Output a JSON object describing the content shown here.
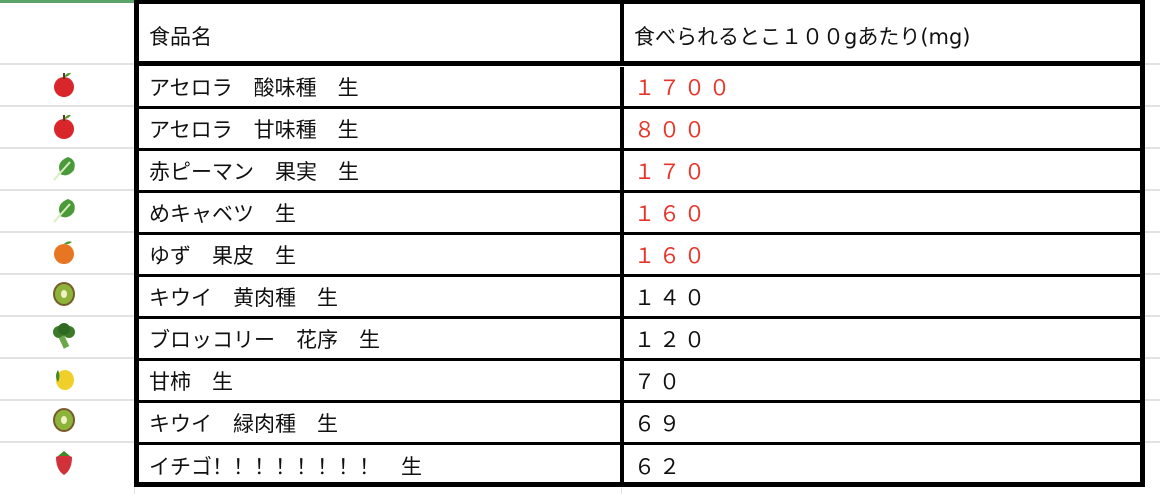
{
  "header": {
    "name": "食品名",
    "value": "食べられるとこ１００gあたり(mg)"
  },
  "colors": {
    "highlight": "#e8352a",
    "normal": "#111111",
    "selection": "#5aa469"
  },
  "rows": [
    {
      "icon": "red-apple-icon",
      "name": "アセロラ　酸味種　生",
      "value": "１７００",
      "highlight": true
    },
    {
      "icon": "red-apple-icon",
      "name": "アセロラ　甘味種　生",
      "value": "８００",
      "highlight": true
    },
    {
      "icon": "leafy-green-icon",
      "name": "赤ピーマン　果実　生",
      "value": "１７０",
      "highlight": true
    },
    {
      "icon": "leafy-green-icon",
      "name": "めキャベツ　生",
      "value": "１６０",
      "highlight": true
    },
    {
      "icon": "tangerine-icon",
      "name": "ゆず　果皮　生",
      "value": "１６０",
      "highlight": true
    },
    {
      "icon": "kiwi-icon",
      "name": "キウイ　黄肉種　生",
      "value": "１４０",
      "highlight": false
    },
    {
      "icon": "broccoli-icon",
      "name": "ブロッコリー　花序　生",
      "value": "１２０",
      "highlight": false
    },
    {
      "icon": "lemon-icon",
      "name": "甘柿　生",
      "value": "７０",
      "highlight": false
    },
    {
      "icon": "kiwi-icon",
      "name": "キウイ　緑肉種　生",
      "value": "６９",
      "highlight": false
    },
    {
      "icon": "strawberry-icon",
      "name": "イチゴ！！！！！！！！　生",
      "value": "６２",
      "highlight": false
    }
  ]
}
